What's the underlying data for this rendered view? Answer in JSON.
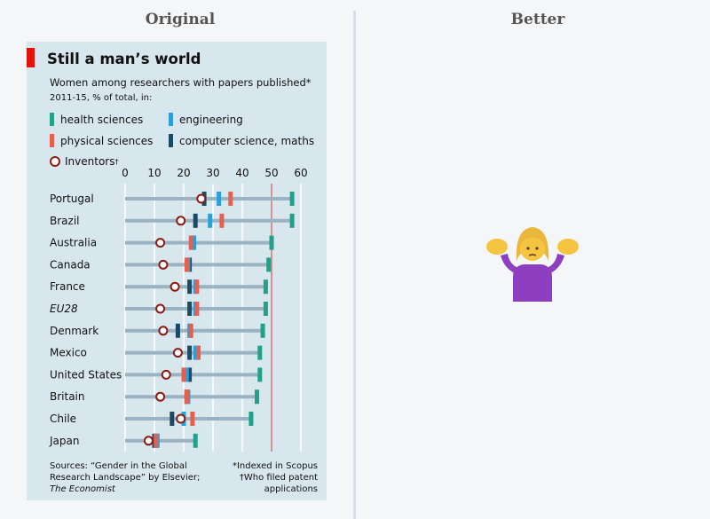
{
  "panels": {
    "left_title": "Original",
    "right_title": "Better"
  },
  "chart_data": {
    "type": "dot-range",
    "title": "Still a man’s world",
    "subtitle_line1": "Women among researchers with papers published*",
    "subtitle_line2": "2011-15, % of total, in:",
    "xlim": [
      0,
      60
    ],
    "xticks": [
      0,
      10,
      20,
      30,
      40,
      50,
      60
    ],
    "reference_line": 50,
    "legend": {
      "health": "health sciences",
      "engineering": "engineering",
      "physical": "physical sciences",
      "computer": "computer science, maths",
      "inventors": "Inventors",
      "inventors_mark": "†"
    },
    "colors": {
      "health": "#23a08a",
      "engineering": "#2b9fdc",
      "physical": "#e8604c",
      "computer": "#1a4a66",
      "inventor_stroke": "#8b1a12",
      "range_line": "#9ab2c2",
      "ref_line": "#d0504a"
    },
    "countries": [
      {
        "name": "Portugal",
        "italic": false,
        "inventors": 26,
        "computer": 27,
        "engineering": 32,
        "physical": 36,
        "health": 57
      },
      {
        "name": "Brazil",
        "italic": false,
        "inventors": 19,
        "computer": 24,
        "engineering": 29,
        "physical": 33,
        "health": 57
      },
      {
        "name": "Australia",
        "italic": false,
        "inventors": 12,
        "computer": 23,
        "engineering": 23.5,
        "physical": 22.5,
        "health": 50
      },
      {
        "name": "Canada",
        "italic": false,
        "inventors": 13,
        "computer": 22,
        "engineering": 21.5,
        "physical": 21,
        "health": 49
      },
      {
        "name": "France",
        "italic": false,
        "inventors": 17,
        "computer": 22,
        "engineering": 24,
        "physical": 24.5,
        "health": 48
      },
      {
        "name": "EU28",
        "italic": true,
        "inventors": 12,
        "computer": 22,
        "engineering": 24,
        "physical": 24.5,
        "health": 48
      },
      {
        "name": "Denmark",
        "italic": false,
        "inventors": 13,
        "computer": 18,
        "engineering": 22,
        "physical": 22.5,
        "health": 47
      },
      {
        "name": "Mexico",
        "italic": false,
        "inventors": 18,
        "computer": 22,
        "engineering": 24,
        "physical": 25,
        "health": 46
      },
      {
        "name": "United States",
        "italic": false,
        "inventors": 14,
        "computer": 22,
        "engineering": 21,
        "physical": 20,
        "health": 46
      },
      {
        "name": "Britain",
        "italic": false,
        "inventors": 12,
        "computer": 21,
        "engineering": 21.5,
        "physical": 21,
        "health": 45
      },
      {
        "name": "Chile",
        "italic": false,
        "inventors": 19,
        "computer": 16,
        "engineering": 20,
        "physical": 23,
        "health": 43
      },
      {
        "name": "Japan",
        "italic": false,
        "inventors": 8,
        "computer": 10,
        "engineering": 11,
        "physical": 10.5,
        "health": 24
      }
    ],
    "source_line1": "Sources: “Gender in the Global",
    "source_line2": "Research Landscape” by Elsevier;",
    "source_line3": "The Economist",
    "note_line1": "*Indexed in Scopus",
    "note_line2": "†Who filed patent",
    "note_line3": "applications"
  }
}
